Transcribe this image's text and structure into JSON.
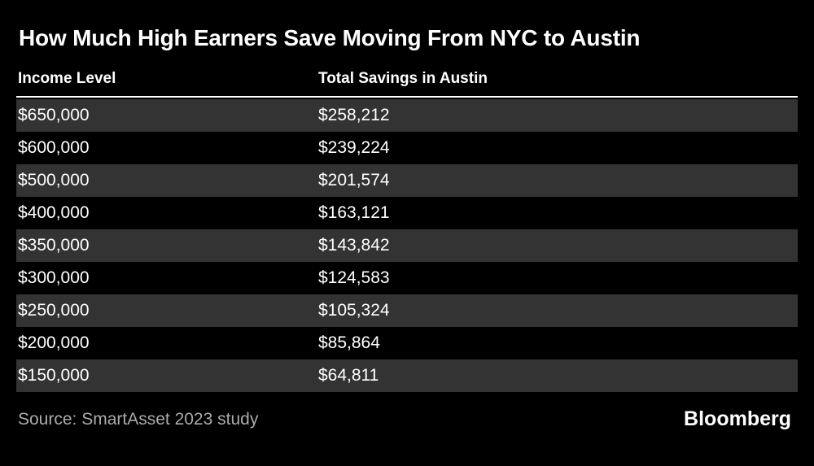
{
  "title": "How Much High Earners Save Moving From NYC to Austin",
  "table": {
    "columns": {
      "income": "Income Level",
      "savings": "Total Savings in Austin"
    },
    "rows": [
      {
        "income": "$650,000",
        "savings": "$258,212"
      },
      {
        "income": "$600,000",
        "savings": "$239,224"
      },
      {
        "income": "$500,000",
        "savings": "$201,574"
      },
      {
        "income": "$400,000",
        "savings": "$163,121"
      },
      {
        "income": "$350,000",
        "savings": "$143,842"
      },
      {
        "income": "$300,000",
        "savings": "$124,583"
      },
      {
        "income": "$250,000",
        "savings": "$105,324"
      },
      {
        "income": "$200,000",
        "savings": "$85,864"
      },
      {
        "income": "$150,000",
        "savings": "$64,811"
      }
    ]
  },
  "footer": {
    "source": "Source: SmartAsset 2023 study",
    "brand": "Bloomberg"
  },
  "colors": {
    "background": "#000000",
    "stripe": "#333333",
    "text": "#ffffff",
    "muted": "#ababab"
  },
  "chart_data": {
    "type": "table",
    "title": "How Much High Earners Save Moving From NYC to Austin",
    "columns": [
      "Income Level",
      "Total Savings in Austin"
    ],
    "rows": [
      [
        "$650,000",
        "$258,212"
      ],
      [
        "$600,000",
        "$239,224"
      ],
      [
        "$500,000",
        "$201,574"
      ],
      [
        "$400,000",
        "$163,121"
      ],
      [
        "$350,000",
        "$143,842"
      ],
      [
        "$300,000",
        "$124,583"
      ],
      [
        "$250,000",
        "$105,324"
      ],
      [
        "$200,000",
        "$85,864"
      ],
      [
        "$150,000",
        "$64,811"
      ]
    ],
    "income_levels": [
      650000,
      600000,
      500000,
      400000,
      350000,
      300000,
      250000,
      200000,
      150000
    ],
    "total_savings": [
      258212,
      239224,
      201574,
      163121,
      143842,
      124583,
      105324,
      85864,
      64811
    ],
    "source": "Source: SmartAsset 2023 study",
    "brand": "Bloomberg",
    "layout": {
      "striped_rows": true,
      "stripe_on": "odd",
      "header_underline": true,
      "legend": "none",
      "grid": "off"
    }
  }
}
